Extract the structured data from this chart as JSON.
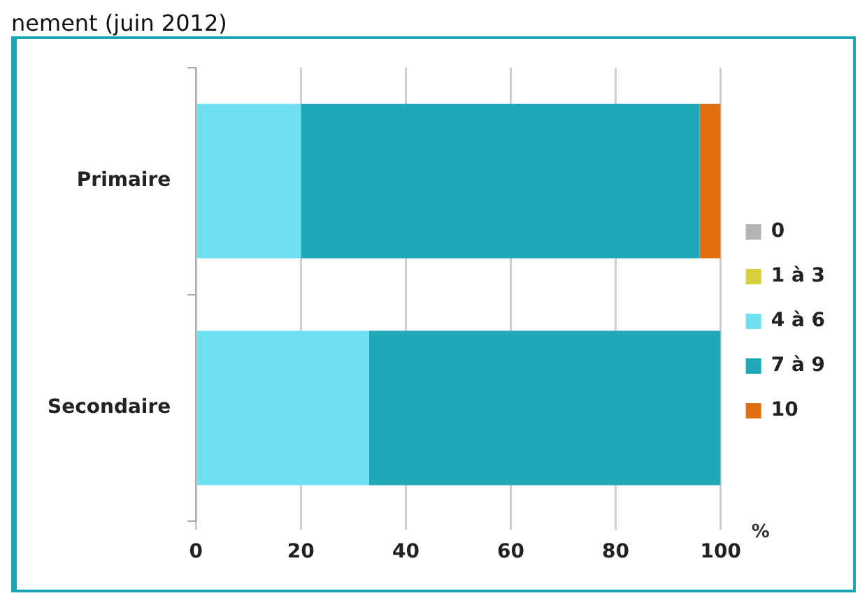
{
  "chart_data": {
    "type": "bar",
    "orientation": "horizontal",
    "stacked": true,
    "title": "nement (juin 2012)",
    "xlabel": "%",
    "categories": [
      "Primaire",
      "Secondaire"
    ],
    "series": [
      {
        "name": "0",
        "color": "#b4b4b4",
        "values": [
          0,
          0
        ]
      },
      {
        "name": "1 à 3",
        "color": "#d8cf3c",
        "values": [
          0,
          0
        ]
      },
      {
        "name": "4 à 6",
        "color": "#6ee0f0",
        "values": [
          20,
          33
        ]
      },
      {
        "name": "7 à 9",
        "color": "#1fa8b8",
        "values": [
          76,
          67
        ]
      },
      {
        "name": "10",
        "color": "#e0700f",
        "values": [
          4,
          0
        ]
      }
    ],
    "xlim": [
      0,
      100
    ],
    "xticks": [
      0,
      20,
      40,
      60,
      80,
      100
    ],
    "grid": "x",
    "legend": "right"
  }
}
